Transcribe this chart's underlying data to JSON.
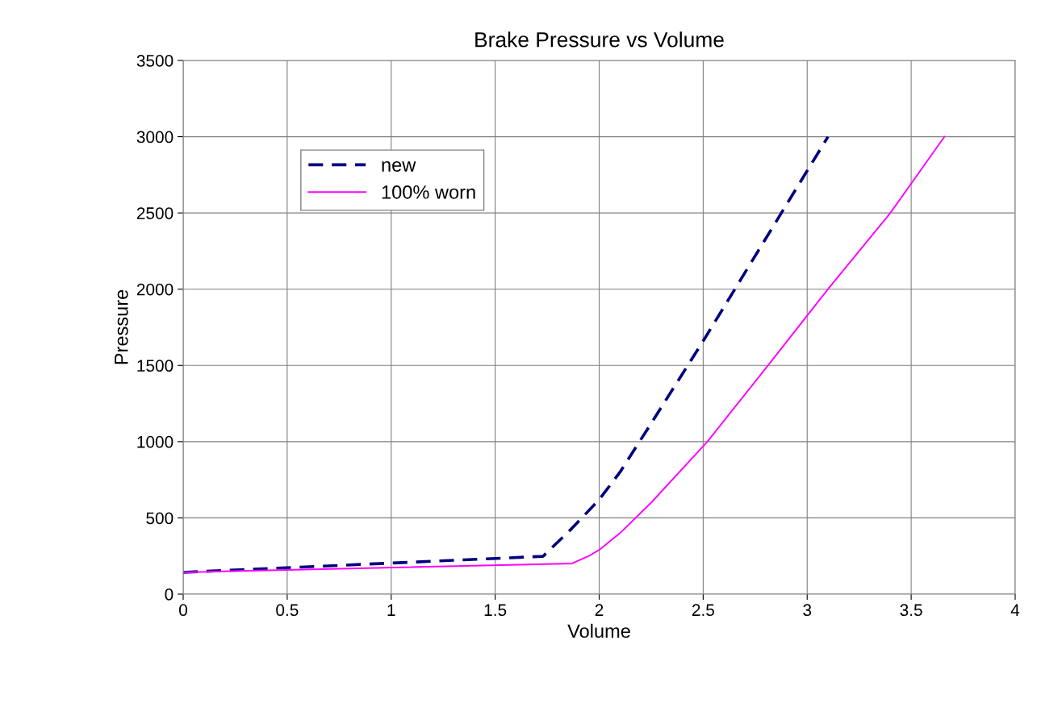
{
  "chart_data": {
    "type": "line",
    "title": "Brake Pressure vs Volume",
    "xlabel": "Volume",
    "ylabel": "Pressure",
    "xlim": [
      0,
      4
    ],
    "xticks": [
      0,
      0.5,
      1,
      1.5,
      2,
      2.5,
      3,
      3.5,
      4
    ],
    "ylim": [
      0,
      3500
    ],
    "yticks": [
      0,
      500,
      1000,
      1500,
      2000,
      2500,
      3000,
      3500
    ],
    "grid": true,
    "legend": "top left",
    "marker": "none",
    "series": [
      {
        "name": "new",
        "color": "#000080",
        "line_style": "dashed",
        "x": [
          0,
          1.73,
          1.87,
          2.0,
          2.1,
          2.25,
          2.5,
          2.8,
          3.1
        ],
        "values": [
          143,
          248,
          433,
          620,
          800,
          1120,
          1660,
          2330,
          3000
        ]
      },
      {
        "name": "100% worn",
        "color": "#ff00ff",
        "line_style": "solid",
        "x": [
          0,
          1.87,
          1.95,
          2.0,
          2.1,
          2.25,
          2.52,
          2.8,
          3.1,
          3.4,
          3.66
        ],
        "values": [
          143,
          201,
          250,
          290,
          400,
          600,
          1000,
          1480,
          2000,
          2500,
          3000
        ]
      }
    ]
  }
}
